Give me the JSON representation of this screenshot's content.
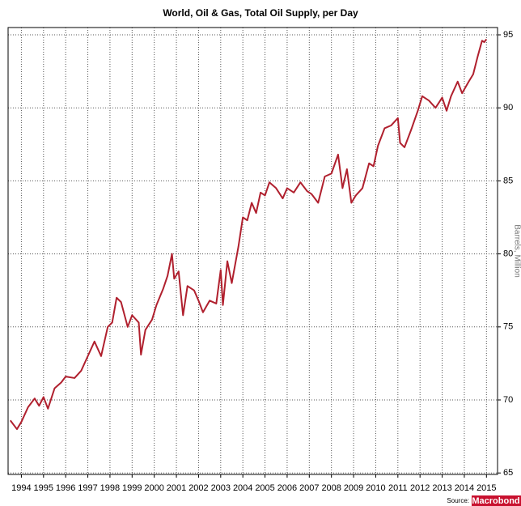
{
  "chart_data": {
    "type": "line",
    "title": "World, Oil & Gas, Total Oil Supply, per Day",
    "y_axis_label": "Barrels, Million",
    "source_label": "Source:",
    "source_brand": "Macrobond",
    "x": [
      1993.5,
      1993.8,
      1994.0,
      1994.3,
      1994.6,
      1994.8,
      1995.0,
      1995.2,
      1995.5,
      1995.8,
      1996.0,
      1996.4,
      1996.7,
      1997.0,
      1997.3,
      1997.6,
      1997.9,
      1998.1,
      1998.3,
      1998.5,
      1998.8,
      1999.0,
      1999.3,
      1999.4,
      1999.6,
      1999.9,
      2000.1,
      2000.4,
      2000.6,
      2000.8,
      2000.9,
      2001.1,
      2001.3,
      2001.5,
      2001.8,
      2002.0,
      2002.2,
      2002.5,
      2002.8,
      2003.0,
      2003.1,
      2003.3,
      2003.5,
      2003.8,
      2004.0,
      2004.2,
      2004.4,
      2004.6,
      2004.8,
      2005.0,
      2005.2,
      2005.5,
      2005.8,
      2006.0,
      2006.3,
      2006.6,
      2006.9,
      2007.1,
      2007.4,
      2007.7,
      2008.0,
      2008.3,
      2008.5,
      2008.7,
      2008.9,
      2009.1,
      2009.4,
      2009.7,
      2009.9,
      2010.1,
      2010.4,
      2010.7,
      2011.0,
      2011.1,
      2011.3,
      2011.6,
      2011.9,
      2012.1,
      2012.4,
      2012.7,
      2013.0,
      2013.2,
      2013.4,
      2013.7,
      2013.9,
      2014.2,
      2014.4,
      2014.6,
      2014.8,
      2014.9,
      2015.0
    ],
    "series": [
      {
        "name": "Total Oil Supply",
        "color": "#b0202e",
        "values": [
          68.6,
          68.0,
          68.5,
          69.5,
          70.1,
          69.6,
          70.2,
          69.4,
          70.8,
          71.2,
          71.6,
          71.5,
          72.0,
          73.0,
          74.0,
          73.0,
          75.0,
          75.3,
          77.0,
          76.7,
          75.0,
          75.8,
          75.3,
          73.1,
          74.8,
          75.5,
          76.5,
          77.6,
          78.5,
          80.0,
          78.3,
          78.8,
          75.8,
          77.8,
          77.5,
          76.8,
          76.0,
          76.8,
          76.6,
          78.9,
          76.5,
          79.5,
          78.0,
          80.5,
          82.5,
          82.3,
          83.5,
          82.8,
          84.2,
          84.0,
          84.9,
          84.5,
          83.8,
          84.5,
          84.2,
          84.9,
          84.3,
          84.1,
          83.5,
          85.3,
          85.5,
          86.8,
          84.5,
          85.8,
          83.5,
          84.0,
          84.5,
          86.2,
          86.0,
          87.4,
          88.6,
          88.8,
          89.3,
          87.6,
          87.3,
          88.5,
          89.8,
          90.8,
          90.5,
          90.0,
          90.7,
          89.8,
          90.8,
          91.8,
          91.0,
          91.8,
          92.3,
          93.5,
          94.6,
          94.5,
          94.7
        ]
      }
    ],
    "xlim": [
      1993.4,
      2015.5
    ],
    "xticks": [
      1994,
      1995,
      1996,
      1997,
      1998,
      1999,
      2000,
      2001,
      2002,
      2003,
      2004,
      2005,
      2006,
      2007,
      2008,
      2009,
      2010,
      2011,
      2012,
      2013,
      2014,
      2015
    ],
    "ylim": [
      64.9,
      95.5
    ],
    "yticks": [
      65,
      70,
      75,
      80,
      85,
      90,
      95
    ],
    "grid": true
  }
}
